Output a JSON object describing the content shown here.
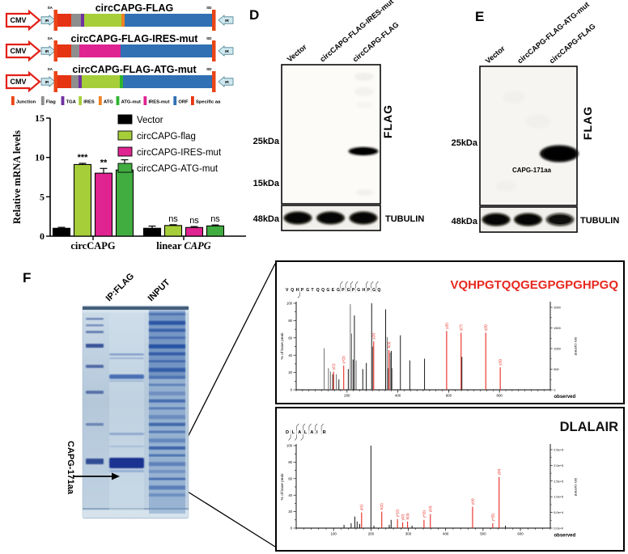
{
  "chart_data": [
    {
      "id": "mrna_levels",
      "type": "bar",
      "title": "",
      "ylabel": "Relative mRNA levels",
      "ylim": [
        0,
        15
      ],
      "yticks": [
        0,
        5,
        10,
        15
      ],
      "grid": false,
      "legend_position": "top-right",
      "categories": [
        {
          "plain": "circCAPG",
          "italic": ""
        },
        {
          "plain": "linear ",
          "italic": "CAPG"
        }
      ],
      "series": [
        {
          "name": "Vector",
          "color": "#000000",
          "values": [
            1.0,
            1.0
          ],
          "errors": [
            0.12,
            0.28
          ],
          "sig": [
            "",
            ""
          ]
        },
        {
          "name": "circCAPG-flag",
          "color": "#a6ce39",
          "values": [
            9.1,
            1.35
          ],
          "errors": [
            0.15,
            0.1
          ],
          "sig": [
            "***",
            "ns"
          ]
        },
        {
          "name": "circCAPG-IRES-mut",
          "color": "#df2390",
          "values": [
            8.0,
            1.1
          ],
          "errors": [
            0.6,
            0.12
          ],
          "sig": [
            "**",
            "ns"
          ]
        },
        {
          "name": "circCAPG-ATG-mut",
          "color": "#41ad41",
          "values": [
            8.4,
            1.3
          ],
          "errors": [
            1.3,
            0.12
          ],
          "sig": [
            "**",
            "ns"
          ]
        }
      ]
    },
    {
      "id": "ms_spectrum_1",
      "type": "bar",
      "title": "VQHPGTQQGEGPGPGHPGQ",
      "title_color": "#e8281f",
      "sequence": "VQHPGTQQGEGPGPGHPGQ",
      "xlabel": "observed",
      "ylabel": "% of base peak",
      "ylabel_right": "ion current",
      "xlim": [
        0,
        1000
      ],
      "xticks": [
        200,
        400,
        600,
        800
      ],
      "yticks": [
        0,
        20,
        40,
        60,
        80,
        100
      ],
      "right_tick_labels": [
        "0",
        "500",
        "1000",
        "1500",
        "2000"
      ],
      "seq_marks_top": [
        11,
        12,
        13,
        14,
        16,
        17,
        18
      ],
      "seq_marks_bottom": [
        3
      ],
      "peaks": [
        {
          "x": 110,
          "h": 48,
          "c": "g"
        },
        {
          "x": 127,
          "h": 25,
          "c": "g"
        },
        {
          "x": 135,
          "h": 21,
          "c": "g"
        },
        {
          "x": 144,
          "h": 18,
          "c": "k"
        },
        {
          "x": 147,
          "h": 21,
          "c": "r",
          "label": "y(1)"
        },
        {
          "x": 158,
          "h": 18,
          "c": "g"
        },
        {
          "x": 168,
          "h": 12,
          "c": "k"
        },
        {
          "x": 187,
          "h": 28,
          "c": "r",
          "label": "y*(2)"
        },
        {
          "x": 205,
          "h": 24,
          "c": "k"
        },
        {
          "x": 213,
          "h": 99,
          "c": "g"
        },
        {
          "x": 218,
          "h": 65,
          "c": "g"
        },
        {
          "x": 224,
          "h": 35,
          "c": "k"
        },
        {
          "x": 229,
          "h": 86,
          "c": "k"
        },
        {
          "x": 236,
          "h": 34,
          "c": "g"
        },
        {
          "x": 262,
          "h": 24,
          "c": "k"
        },
        {
          "x": 276,
          "h": 31,
          "c": "k"
        },
        {
          "x": 297,
          "h": 100,
          "c": "k"
        },
        {
          "x": 301,
          "h": 50,
          "c": "g"
        },
        {
          "x": 305,
          "h": 56,
          "c": "r",
          "label": "y(3)"
        },
        {
          "x": 352,
          "h": 93,
          "c": "k"
        },
        {
          "x": 358,
          "h": 61,
          "c": "g"
        },
        {
          "x": 363,
          "h": 25,
          "c": "k"
        },
        {
          "x": 365,
          "h": 46,
          "c": "r",
          "label": "b(3)"
        },
        {
          "x": 370,
          "h": 43,
          "c": "g"
        },
        {
          "x": 374,
          "h": 45,
          "c": "k"
        },
        {
          "x": 378,
          "h": 25,
          "c": "g"
        },
        {
          "x": 410,
          "h": 63,
          "c": "k"
        },
        {
          "x": 447,
          "h": 34,
          "c": "k"
        },
        {
          "x": 505,
          "h": 36,
          "c": "k"
        },
        {
          "x": 592,
          "h": 68,
          "c": "r",
          "label": "y(6)"
        },
        {
          "x": 649,
          "h": 66,
          "c": "r",
          "label": "y(7)"
        },
        {
          "x": 652,
          "h": 38,
          "c": "k"
        },
        {
          "x": 746,
          "h": 66,
          "c": "r",
          "label": "y(8)"
        },
        {
          "x": 803,
          "h": 26,
          "c": "r",
          "label": "y(9)"
        }
      ]
    },
    {
      "id": "ms_spectrum_2",
      "type": "bar",
      "title": "DLALAIR",
      "title_color": "#111111",
      "sequence": "DLALAIR",
      "xlabel": "observed",
      "ylabel": "% of base peak",
      "ylabel_right": "ion current",
      "xlim": [
        0,
        680
      ],
      "xticks": [
        100,
        200,
        300,
        400,
        500,
        600
      ],
      "yticks": [
        0,
        20,
        40,
        60,
        80,
        100
      ],
      "right_tick_labels": [
        "0.0e+0",
        "5.0e+4",
        "1.0e+5",
        "1.5e+5",
        "2.0e+5",
        "2.5e+5"
      ],
      "seq_marks_top": [
        2,
        3,
        4,
        5,
        6
      ],
      "seq_marks_bottom": [
        1,
        2,
        3
      ],
      "peaks": [
        {
          "x": 128,
          "h": 4,
          "c": "k"
        },
        {
          "x": 147,
          "h": 6,
          "c": "k"
        },
        {
          "x": 157,
          "h": 14,
          "c": "k"
        },
        {
          "x": 163,
          "h": 8,
          "c": "k"
        },
        {
          "x": 170,
          "h": 5,
          "c": "k"
        },
        {
          "x": 175,
          "h": 19,
          "c": "r",
          "label": "y(1)"
        },
        {
          "x": 200,
          "h": 100,
          "c": "k"
        },
        {
          "x": 208,
          "h": 3,
          "c": "k"
        },
        {
          "x": 229,
          "h": 20,
          "c": "r",
          "label": "b(2)"
        },
        {
          "x": 249,
          "h": 4,
          "c": "k"
        },
        {
          "x": 254,
          "h": 10,
          "c": "k"
        },
        {
          "x": 271,
          "h": 11,
          "c": "r",
          "label": "y*(2)"
        },
        {
          "x": 285,
          "h": 7,
          "c": "r",
          "label": "y(2)"
        },
        {
          "x": 298,
          "h": 8,
          "c": "r",
          "label": "b(3)"
        },
        {
          "x": 310,
          "h": 3,
          "c": "k"
        },
        {
          "x": 342,
          "h": 10,
          "c": "r",
          "label": "y*(3)"
        },
        {
          "x": 359,
          "h": 17,
          "c": "r",
          "label": "y(3)"
        },
        {
          "x": 472,
          "h": 26,
          "c": "r",
          "label": "y(4)"
        },
        {
          "x": 526,
          "h": 6,
          "c": "r",
          "label": "y*(5)"
        },
        {
          "x": 543,
          "h": 62,
          "c": "r",
          "label": "y(5)"
        },
        {
          "x": 560,
          "h": 3,
          "c": "k"
        }
      ]
    }
  ],
  "panels": {
    "constructs": {
      "promoter_label": "CMV",
      "ir_label": "IR",
      "sa_label": "SA",
      "sd_label": "SD",
      "junction_color": "#ea4517",
      "rows": [
        {
          "title": "circCAPG-FLAG",
          "blocks": [
            {
              "name": "specific-aa",
              "color": "#e63312",
              "w": 17
            },
            {
              "name": "flag",
              "color": "#8e8e8e",
              "w": 12
            },
            {
              "name": "tga",
              "color": "#7030a0",
              "w": 4
            },
            {
              "name": "ires",
              "color": "#a6ce39",
              "w": 46
            },
            {
              "name": "atg",
              "color": "#ef8223",
              "w": 4
            },
            {
              "name": "orf",
              "color": "#3070b3",
              "w": 108
            }
          ]
        },
        {
          "title": "circCAPG-FLAG-IRES-mut",
          "blocks": [
            {
              "name": "specific-aa",
              "color": "#e63312",
              "w": 17
            },
            {
              "name": "flag",
              "color": "#8e8e8e",
              "w": 10
            },
            {
              "name": "ires-mut",
              "color": "#df2390",
              "w": 51
            },
            {
              "name": "orf",
              "color": "#3070b3",
              "w": 113
            }
          ]
        },
        {
          "title": "circCAPG-FLAG-ATG-mut",
          "blocks": [
            {
              "name": "specific-aa",
              "color": "#e63312",
              "w": 17
            },
            {
              "name": "flag",
              "color": "#8e8e8e",
              "w": 9
            },
            {
              "name": "tga",
              "color": "#7030a0",
              "w": 4
            },
            {
              "name": "ires",
              "color": "#a6ce39",
              "w": 47
            },
            {
              "name": "atg-mut",
              "color": "#2db52d",
              "w": 4
            },
            {
              "name": "orf",
              "color": "#3070b3",
              "w": 110
            }
          ]
        }
      ],
      "legend": [
        {
          "label": "Junction",
          "color": "#ea4517"
        },
        {
          "label": "Flag",
          "color": "#8e8e8e"
        },
        {
          "label": "TGA",
          "color": "#7030a0"
        },
        {
          "label": "IRES",
          "color": "#a6ce39"
        },
        {
          "label": "ATG",
          "color": "#ef8223"
        },
        {
          "label": "ATG-mut",
          "color": "#2db52d"
        },
        {
          "label": "IRES-mut",
          "color": "#df2390"
        },
        {
          "label": "ORF",
          "color": "#3070b3"
        },
        {
          "label": "Specific aa",
          "color": "#e63312"
        }
      ]
    },
    "blot_d": {
      "panel_letter": "D",
      "lane_labels": [
        "Vector",
        "circCAPG-FLAG-IRES-mut",
        "circCAPG-FLAG"
      ],
      "marker_labels": [
        "25kDa",
        "15kDa",
        "48kDa"
      ],
      "flag_label": "FLAG",
      "tubulin_label": "TUBULIN"
    },
    "blot_e": {
      "panel_letter": "E",
      "lane_labels": [
        "Vector",
        "circCAPG-FLAG-ATG-mut",
        "circCAPG-FLAG"
      ],
      "marker_labels": [
        "25kDa",
        "48kDa"
      ],
      "flag_label": "FLAG",
      "tubulin_label": "TUBULIN",
      "band_annotation": "CAPG-171aa"
    },
    "gel_f": {
      "panel_letter": "F",
      "lane_labels": [
        "IP:FLAG",
        "INPUT"
      ],
      "band_annotation": "CAPG-171aa"
    }
  }
}
